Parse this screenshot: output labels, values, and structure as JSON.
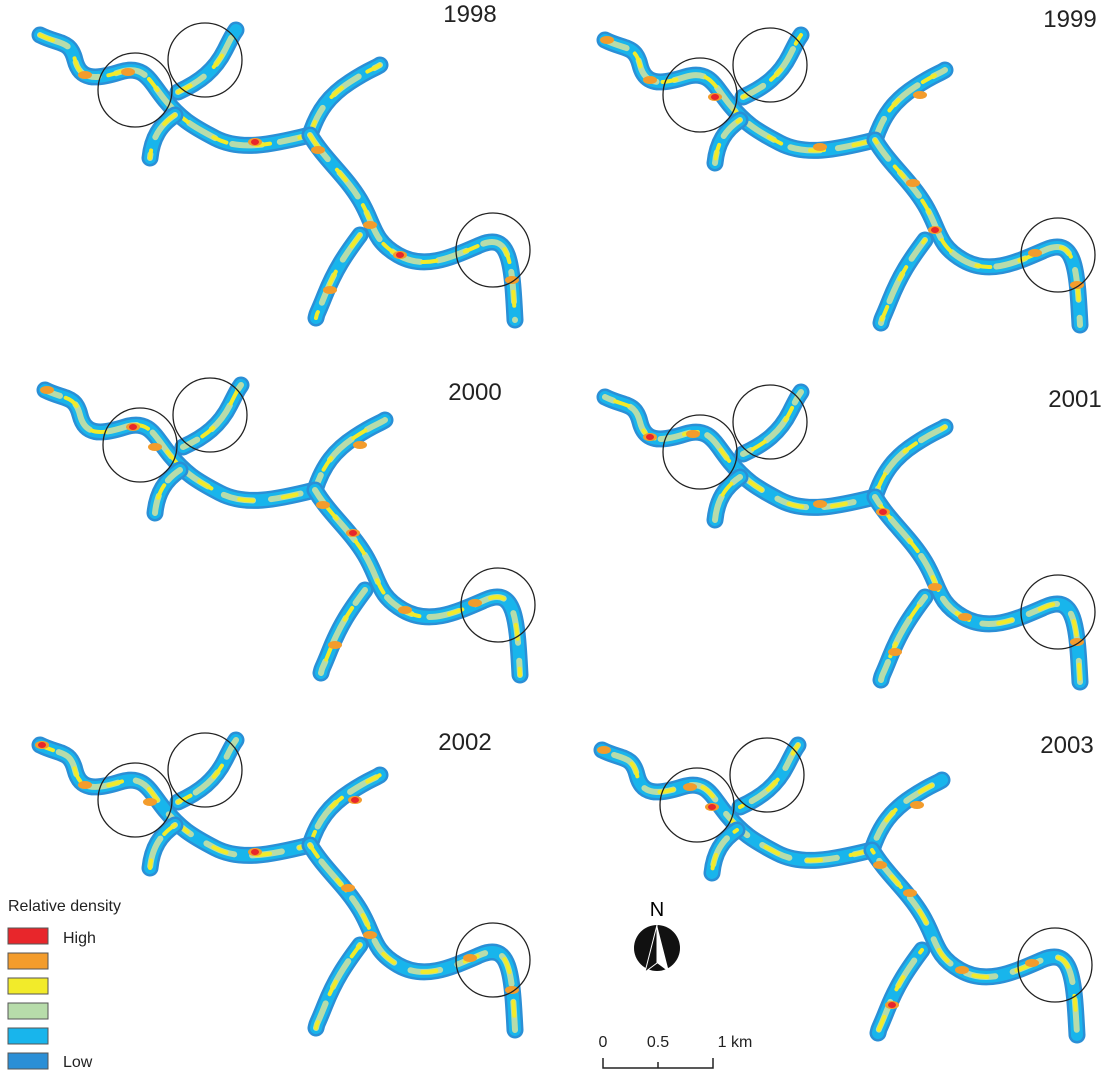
{
  "panels": [
    {
      "year": "1998"
    },
    {
      "year": "1999"
    },
    {
      "year": "2000"
    },
    {
      "year": "2001"
    },
    {
      "year": "2002"
    },
    {
      "year": "2003"
    }
  ],
  "legend": {
    "title": "Relative density",
    "high": "High",
    "low": "Low",
    "colors": [
      "#e8262b",
      "#f39c2c",
      "#f2eb2a",
      "#b7dcaa",
      "#18b5ec",
      "#2b8fd6"
    ]
  },
  "north": "N",
  "scale_bar": {
    "labels": [
      "0",
      "0.5",
      "1 km"
    ]
  }
}
